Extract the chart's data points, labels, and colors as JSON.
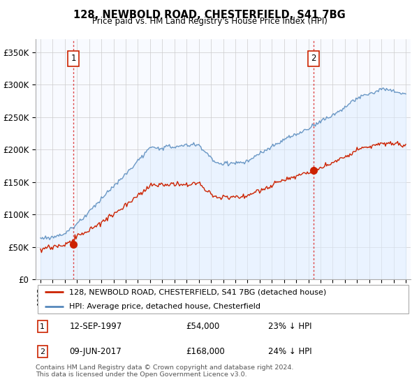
{
  "title": "128, NEWBOLD ROAD, CHESTERFIELD, S41 7BG",
  "subtitle": "Price paid vs. HM Land Registry's House Price Index (HPI)",
  "ylabel_ticks": [
    "£0",
    "£50K",
    "£100K",
    "£150K",
    "£200K",
    "£250K",
    "£300K",
    "£350K"
  ],
  "ytick_values": [
    0,
    50000,
    100000,
    150000,
    200000,
    250000,
    300000,
    350000
  ],
  "ylim": [
    0,
    370000
  ],
  "xlim_start": 1994.6,
  "xlim_end": 2025.4,
  "legend_label_red": "128, NEWBOLD ROAD, CHESTERFIELD, S41 7BG (detached house)",
  "legend_label_blue": "HPI: Average price, detached house, Chesterfield",
  "sale1_year": 1997.71,
  "sale1_price": 54000,
  "sale1_label": "1",
  "sale2_year": 2017.44,
  "sale2_price": 168000,
  "sale2_label": "2",
  "footnote": "Contains HM Land Registry data © Crown copyright and database right 2024.\nThis data is licensed under the Open Government Licence v3.0.",
  "red_color": "#cc2200",
  "blue_color": "#5588bb",
  "blue_fill_color": "#ddeeff",
  "dashed_color": "#dd4444",
  "background_color": "#ffffff",
  "plot_bg_color": "#f8faff",
  "grid_color": "#cccccc"
}
